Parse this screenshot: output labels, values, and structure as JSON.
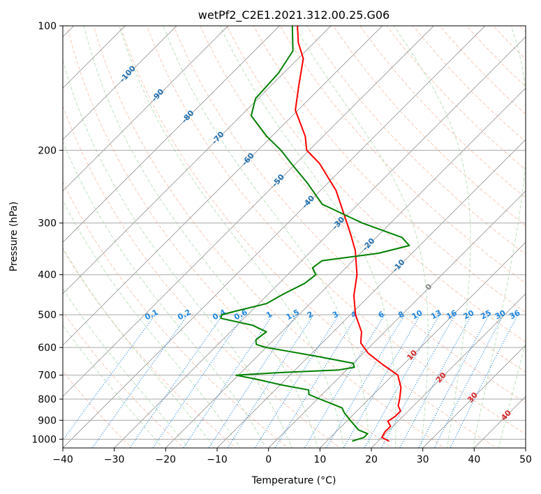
{
  "chart_data": {
    "type": "skew-t",
    "title": "wetPf2_C2E1.2021.312.00.25.G06",
    "xlabel": "Temperature (°C)",
    "ylabel": "Pressure (hPa)",
    "xlim": [
      -40,
      50
    ],
    "ylim": [
      1050,
      100
    ],
    "x_ticks": [
      "−40",
      "−30",
      "−20",
      "−10",
      "0",
      "10",
      "20",
      "30",
      "40",
      "50"
    ],
    "y_ticks": [
      {
        "p": 100,
        "label": "100"
      },
      {
        "p": 200,
        "label": "200"
      },
      {
        "p": 300,
        "label": "300"
      },
      {
        "p": 400,
        "label": "400"
      },
      {
        "p": 500,
        "label": "500"
      },
      {
        "p": 600,
        "label": "600"
      },
      {
        "p": 700,
        "label": "700"
      },
      {
        "p": 800,
        "label": "800"
      },
      {
        "p": 900,
        "label": "900"
      },
      {
        "p": 1000,
        "label": "1000"
      }
    ],
    "grid": true,
    "colors": {
      "temperature": "#ff0000",
      "dewpoint": "#008000",
      "isotherm": "#9a9a9a",
      "dry_adiabat": "#f4a582",
      "moist_adiabat": "#9fd69f",
      "mixing_ratio": "#1f86e0",
      "isotherm_label": "#1f6fb0",
      "dry_label": "#d62728",
      "zero_label": "#888888"
    },
    "series": [
      {
        "role": "temperature",
        "points": [
          {
            "p": 1010,
            "t": 22.0
          },
          {
            "p": 990,
            "t": 20.0
          },
          {
            "p": 960,
            "t": 19.5
          },
          {
            "p": 930,
            "t": 19.5
          },
          {
            "p": 905,
            "t": 18.0
          },
          {
            "p": 880,
            "t": 18.5
          },
          {
            "p": 855,
            "t": 18.5
          },
          {
            "p": 830,
            "t": 17.0
          },
          {
            "p": 800,
            "t": 16.0
          },
          {
            "p": 750,
            "t": 14.0
          },
          {
            "p": 700,
            "t": 11.0
          },
          {
            "p": 660,
            "t": 6.0
          },
          {
            "p": 620,
            "t": 1.0
          },
          {
            "p": 585,
            "t": -2.5
          },
          {
            "p": 550,
            "t": -4.5
          },
          {
            "p": 500,
            "t": -9.0
          },
          {
            "p": 450,
            "t": -13.0
          },
          {
            "p": 400,
            "t": -16.5
          },
          {
            "p": 350,
            "t": -21.5
          },
          {
            "p": 320,
            "t": -25.5
          },
          {
            "p": 300,
            "t": -28.5
          },
          {
            "p": 250,
            "t": -37.0
          },
          {
            "p": 215,
            "t": -45.5
          },
          {
            "p": 200,
            "t": -50.5
          },
          {
            "p": 185,
            "t": -53.5
          },
          {
            "p": 160,
            "t": -60.5
          },
          {
            "p": 140,
            "t": -64.5
          },
          {
            "p": 120,
            "t": -69.0
          },
          {
            "p": 110,
            "t": -73.0
          },
          {
            "p": 100,
            "t": -76.5
          }
        ]
      },
      {
        "role": "dewpoint",
        "points": [
          {
            "p": 1010,
            "t": 15.0
          },
          {
            "p": 990,
            "t": 16.5
          },
          {
            "p": 970,
            "t": 16.5
          },
          {
            "p": 950,
            "t": 14.0
          },
          {
            "p": 900,
            "t": 10.5
          },
          {
            "p": 865,
            "t": 8.0
          },
          {
            "p": 840,
            "t": 6.5
          },
          {
            "p": 800,
            "t": 0.5
          },
          {
            "p": 780,
            "t": -2.5
          },
          {
            "p": 760,
            "t": -3.5
          },
          {
            "p": 740,
            "t": -9.5
          },
          {
            "p": 715,
            "t": -16.0
          },
          {
            "p": 700,
            "t": -20.5
          },
          {
            "p": 690,
            "t": -12.5
          },
          {
            "p": 680,
            "t": -1.5
          },
          {
            "p": 670,
            "t": 1.0
          },
          {
            "p": 655,
            "t": 0.0
          },
          {
            "p": 630,
            "t": -8.5
          },
          {
            "p": 610,
            "t": -16.0
          },
          {
            "p": 600,
            "t": -20.0
          },
          {
            "p": 590,
            "t": -22.5
          },
          {
            "p": 575,
            "t": -23.5
          },
          {
            "p": 550,
            "t": -23.0
          },
          {
            "p": 530,
            "t": -27.0
          },
          {
            "p": 510,
            "t": -34.5
          },
          {
            "p": 500,
            "t": -35.0
          },
          {
            "p": 490,
            "t": -33.0
          },
          {
            "p": 470,
            "t": -28.5
          },
          {
            "p": 445,
            "t": -27.0
          },
          {
            "p": 420,
            "t": -25.0
          },
          {
            "p": 400,
            "t": -24.5
          },
          {
            "p": 385,
            "t": -26.5
          },
          {
            "p": 370,
            "t": -26.0
          },
          {
            "p": 355,
            "t": -16.5
          },
          {
            "p": 340,
            "t": -12.0
          },
          {
            "p": 325,
            "t": -15.0
          },
          {
            "p": 300,
            "t": -25.5
          },
          {
            "p": 270,
            "t": -37.0
          },
          {
            "p": 240,
            "t": -44.0
          },
          {
            "p": 215,
            "t": -51.0
          },
          {
            "p": 200,
            "t": -55.5
          },
          {
            "p": 185,
            "t": -61.0
          },
          {
            "p": 165,
            "t": -68.0
          },
          {
            "p": 150,
            "t": -70.5
          },
          {
            "p": 130,
            "t": -71.0
          },
          {
            "p": 115,
            "t": -72.5
          },
          {
            "p": 100,
            "t": -77.5
          }
        ]
      }
    ],
    "isotherm_labels": [
      {
        "t": -100,
        "label": "-100"
      },
      {
        "t": -90,
        "label": "-90"
      },
      {
        "t": -80,
        "label": "-80"
      },
      {
        "t": -70,
        "label": "-70"
      },
      {
        "t": -60,
        "label": "-60"
      },
      {
        "t": -50,
        "label": "-50"
      },
      {
        "t": -40,
        "label": "-40"
      },
      {
        "t": -30,
        "label": "-30"
      },
      {
        "t": -20,
        "label": "-20"
      },
      {
        "t": -10,
        "label": "-10"
      },
      {
        "t": 0,
        "label": "0"
      },
      {
        "t": 10,
        "label": "10"
      },
      {
        "t": 20,
        "label": "20"
      },
      {
        "t": 30,
        "label": "30"
      },
      {
        "t": 40,
        "label": "40"
      }
    ],
    "mixing_ratios": [
      {
        "w": 0.1,
        "label": "0.1"
      },
      {
        "w": 0.2,
        "label": "0.2"
      },
      {
        "w": 0.4,
        "label": "0.4"
      },
      {
        "w": 0.6,
        "label": "0.6"
      },
      {
        "w": 1,
        "label": "1"
      },
      {
        "w": 1.5,
        "label": "1.5"
      },
      {
        "w": 2,
        "label": "2"
      },
      {
        "w": 3,
        "label": "3"
      },
      {
        "w": 4,
        "label": "4"
      },
      {
        "w": 6,
        "label": "6"
      },
      {
        "w": 8,
        "label": "8"
      },
      {
        "w": 10,
        "label": "10"
      },
      {
        "w": 13,
        "label": "13"
      },
      {
        "w": 16,
        "label": "16"
      },
      {
        "w": 20,
        "label": "20"
      },
      {
        "w": 25,
        "label": "25"
      },
      {
        "w": 30,
        "label": "30"
      },
      {
        "w": 36,
        "label": "36"
      }
    ]
  }
}
